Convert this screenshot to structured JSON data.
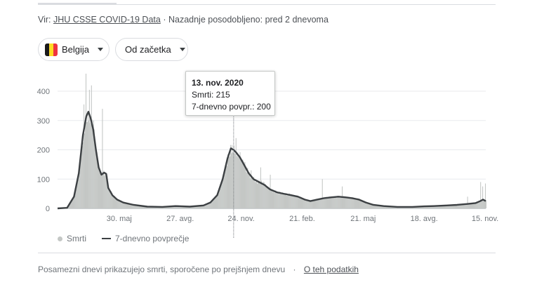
{
  "source": {
    "prefix": "Vir:",
    "link": "JHU CSSE COVID-19 Data",
    "updated": "· Nazadnje posodobljeno: pred 2 dnevoma"
  },
  "filters": {
    "country": "Belgija",
    "range": "Od začetka"
  },
  "colors": {
    "bars": "#c4c7c5",
    "avg_line": "#3c4043",
    "grid": "#e8eaed",
    "flag": [
      "#1a1a1a",
      "#fdda24",
      "#ef3340"
    ]
  },
  "icons": [
    "belgium-flag-icon",
    "chevron-down-icon",
    "legend-dot-icon",
    "legend-line-icon"
  ],
  "tooltip": {
    "date": "13. nov. 2020",
    "deaths": "Smrti: 215",
    "avg": "7-dnevno povpr.: 200"
  },
  "legend": {
    "bars": "Smrti",
    "line": "7-dnevno povprečje"
  },
  "footer": {
    "note": "Posamezni dnevi prikazujejo smrti, sporočene po prejšnjem dnevu",
    "sep": "·",
    "link": "O teh podatkih"
  },
  "chart_data": {
    "type": "bar",
    "x_start": "2020-03-01",
    "x_end": "2021-11-16",
    "ylim": [
      0,
      460
    ],
    "y_ticks": [
      0,
      100,
      200,
      300,
      400
    ],
    "x_ticks": [
      {
        "label": "30. maj",
        "date": "2020-05-30"
      },
      {
        "label": "27. avg.",
        "date": "2020-08-27"
      },
      {
        "label": "24. nov.",
        "date": "2020-11-24"
      },
      {
        "label": "21. feb.",
        "date": "2021-02-21"
      },
      {
        "label": "21. maj",
        "date": "2021-05-21"
      },
      {
        "label": "18. avg.",
        "date": "2021-08-18"
      },
      {
        "label": "15. nov.",
        "date": "2021-11-15"
      }
    ],
    "grid": true,
    "legend_position": "bottom-left",
    "highlight": {
      "date": "2020-11-13",
      "deaths": 215,
      "avg": 200
    },
    "series": [
      {
        "name": "7-dnevno povprečje",
        "kind": "line",
        "points": [
          [
            "2020-03-01",
            0
          ],
          [
            "2020-03-15",
            2
          ],
          [
            "2020-03-25",
            40
          ],
          [
            "2020-04-01",
            120
          ],
          [
            "2020-04-07",
            250
          ],
          [
            "2020-04-12",
            315
          ],
          [
            "2020-04-15",
            330
          ],
          [
            "2020-04-18",
            310
          ],
          [
            "2020-04-22",
            270
          ],
          [
            "2020-04-26",
            200
          ],
          [
            "2020-04-30",
            140
          ],
          [
            "2020-05-04",
            115
          ],
          [
            "2020-05-08",
            122
          ],
          [
            "2020-05-11",
            118
          ],
          [
            "2020-05-14",
            70
          ],
          [
            "2020-05-20",
            45
          ],
          [
            "2020-05-27",
            30
          ],
          [
            "2020-06-05",
            20
          ],
          [
            "2020-06-20",
            12
          ],
          [
            "2020-07-10",
            6
          ],
          [
            "2020-08-01",
            5
          ],
          [
            "2020-08-20",
            8
          ],
          [
            "2020-09-10",
            6
          ],
          [
            "2020-09-30",
            10
          ],
          [
            "2020-10-10",
            20
          ],
          [
            "2020-10-20",
            45
          ],
          [
            "2020-10-28",
            100
          ],
          [
            "2020-11-04",
            170
          ],
          [
            "2020-11-09",
            205
          ],
          [
            "2020-11-13",
            200
          ],
          [
            "2020-11-17",
            190
          ],
          [
            "2020-11-22",
            175
          ],
          [
            "2020-11-28",
            150
          ],
          [
            "2020-12-05",
            120
          ],
          [
            "2020-12-12",
            100
          ],
          [
            "2020-12-20",
            90
          ],
          [
            "2020-12-28",
            80
          ],
          [
            "2021-01-05",
            65
          ],
          [
            "2021-01-15",
            55
          ],
          [
            "2021-01-25",
            50
          ],
          [
            "2021-02-05",
            45
          ],
          [
            "2021-02-15",
            40
          ],
          [
            "2021-02-25",
            30
          ],
          [
            "2021-03-05",
            25
          ],
          [
            "2021-03-15",
            30
          ],
          [
            "2021-03-25",
            35
          ],
          [
            "2021-04-05",
            38
          ],
          [
            "2021-04-15",
            40
          ],
          [
            "2021-04-25",
            38
          ],
          [
            "2021-05-05",
            35
          ],
          [
            "2021-05-15",
            30
          ],
          [
            "2021-05-25",
            20
          ],
          [
            "2021-06-05",
            12
          ],
          [
            "2021-06-20",
            8
          ],
          [
            "2021-07-10",
            5
          ],
          [
            "2021-08-01",
            5
          ],
          [
            "2021-08-18",
            7
          ],
          [
            "2021-09-01",
            8
          ],
          [
            "2021-09-20",
            10
          ],
          [
            "2021-10-05",
            12
          ],
          [
            "2021-10-20",
            15
          ],
          [
            "2021-11-01",
            18
          ],
          [
            "2021-11-08",
            25
          ],
          [
            "2021-11-12",
            30
          ],
          [
            "2021-11-16",
            25
          ]
        ]
      },
      {
        "name": "Smrti",
        "kind": "bar",
        "spikes": [
          [
            "2020-04-08",
            355
          ],
          [
            "2020-04-11",
            460
          ],
          [
            "2020-04-16",
            405
          ],
          [
            "2020-04-19",
            420
          ],
          [
            "2020-04-22",
            300
          ],
          [
            "2020-05-05",
            340
          ],
          [
            "2020-11-16",
            240
          ],
          [
            "2020-12-08",
            130
          ],
          [
            "2020-12-22",
            140
          ],
          [
            "2021-01-05",
            115
          ],
          [
            "2021-03-22",
            100
          ],
          [
            "2021-04-20",
            75
          ],
          [
            "2021-10-20",
            40
          ],
          [
            "2021-11-08",
            90
          ],
          [
            "2021-11-11",
            75
          ],
          [
            "2021-11-15",
            85
          ]
        ]
      }
    ]
  }
}
